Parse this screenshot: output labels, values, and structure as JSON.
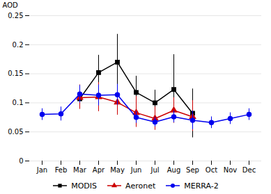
{
  "chart_data": {
    "type": "line",
    "categories": [
      "Jan",
      "Feb",
      "Mar",
      "Apr",
      "May",
      "Jun",
      "Jul",
      "Aug",
      "Sep",
      "Oct",
      "Nov",
      "Dec"
    ],
    "series": [
      {
        "name": "MODIS",
        "color": "#000000",
        "marker": "square",
        "values": [
          null,
          null,
          0.107,
          0.152,
          0.17,
          0.118,
          0.1,
          0.123,
          0.082,
          null,
          null,
          null
        ],
        "err_lo": [
          null,
          null,
          0.012,
          0.02,
          0.055,
          0.03,
          0.02,
          0.05,
          0.042,
          null,
          null,
          null
        ],
        "err_hi": [
          null,
          null,
          0.012,
          0.03,
          0.048,
          0.028,
          0.022,
          0.06,
          0.042,
          null,
          null,
          null
        ]
      },
      {
        "name": "Aeronet",
        "color": "#cc0000",
        "marker": "triangle",
        "values": [
          null,
          null,
          0.109,
          0.11,
          0.101,
          0.083,
          0.073,
          0.087,
          0.076,
          null,
          null,
          null
        ],
        "err_lo": [
          null,
          null,
          0.02,
          0.025,
          0.022,
          0.025,
          0.02,
          0.022,
          0.025,
          null,
          null,
          null
        ],
        "err_hi": [
          null,
          null,
          0.022,
          0.025,
          0.03,
          0.028,
          0.02,
          0.022,
          0.028,
          null,
          null,
          null
        ]
      },
      {
        "name": "MERRA-2",
        "color": "#0000ee",
        "marker": "circle",
        "values": [
          0.08,
          0.081,
          0.115,
          0.113,
          0.114,
          0.075,
          0.067,
          0.076,
          0.07,
          0.066,
          0.073,
          0.08
        ],
        "err_lo": [
          0.01,
          0.012,
          0.015,
          0.018,
          0.018,
          0.01,
          0.008,
          0.01,
          0.016,
          0.01,
          0.01,
          0.01
        ],
        "err_hi": [
          0.01,
          0.012,
          0.015,
          0.018,
          0.018,
          0.01,
          0.008,
          0.01,
          0.016,
          0.01,
          0.01,
          0.01
        ]
      }
    ],
    "ylabel": "AOD",
    "ylim": [
      0,
      0.25
    ],
    "yticks": [
      0,
      0.05,
      0.1,
      0.15,
      0.2,
      0.25
    ],
    "grid": true,
    "legend": "lower center"
  }
}
